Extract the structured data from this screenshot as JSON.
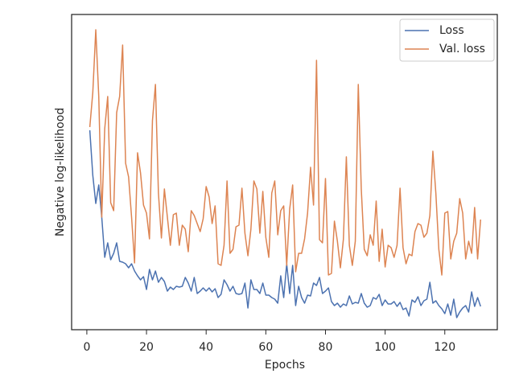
{
  "chart_data": {
    "type": "line",
    "xlabel": "Epochs",
    "ylabel": "Negative log-likelihood",
    "x": [
      1,
      2,
      3,
      4,
      5,
      6,
      7,
      8,
      9,
      10,
      11,
      12,
      13,
      14,
      15,
      16,
      17,
      18,
      19,
      20,
      21,
      22,
      23,
      24,
      25,
      26,
      27,
      28,
      29,
      30,
      31,
      32,
      33,
      34,
      35,
      36,
      37,
      38,
      39,
      40,
      41,
      42,
      43,
      44,
      45,
      46,
      47,
      48,
      49,
      50,
      51,
      52,
      53,
      54,
      55,
      56,
      57,
      58,
      59,
      60,
      61,
      62,
      63,
      64,
      65,
      66,
      67,
      68,
      69,
      70,
      71,
      72,
      73,
      74,
      75,
      76,
      77,
      78,
      79,
      80,
      81,
      82,
      83,
      84,
      85,
      86,
      87,
      88,
      89,
      90,
      91,
      92,
      93,
      94,
      95,
      96,
      97,
      98,
      99,
      100,
      101,
      102,
      103,
      104,
      105,
      106,
      107,
      108,
      109,
      110,
      111,
      112,
      113,
      114,
      115,
      116,
      117,
      118,
      119,
      120,
      121,
      122,
      123,
      124,
      125,
      126,
      127,
      128,
      129,
      130,
      131,
      132
    ],
    "series": [
      {
        "name": "Loss",
        "color": "#4c72b0",
        "values": [
          248,
          192,
          157,
          180,
          140,
          90,
          108,
          87,
          95,
          108,
          85,
          84,
          82,
          77,
          82,
          73,
          67,
          62,
          66,
          50,
          75,
          62,
          73,
          59,
          65,
          60,
          48,
          53,
          50,
          54,
          53,
          54,
          65,
          58,
          48,
          65,
          45,
          48,
          52,
          48,
          52,
          47,
          51,
          40,
          44,
          62,
          56,
          48,
          54,
          45,
          44,
          45,
          58,
          27,
          62,
          50,
          50,
          45,
          58,
          43,
          43,
          40,
          38,
          33,
          67,
          40,
          82,
          45,
          80,
          30,
          54,
          40,
          33,
          43,
          42,
          58,
          55,
          65,
          45,
          48,
          52,
          35,
          30,
          33,
          28,
          32,
          30,
          42,
          32,
          34,
          33,
          45,
          33,
          28,
          30,
          40,
          38,
          44,
          30,
          37,
          32,
          32,
          35,
          29,
          34,
          25,
          27,
          17,
          37,
          34,
          41,
          30,
          36,
          38,
          59,
          33,
          36,
          30,
          26,
          20,
          32,
          18,
          38,
          15,
          22,
          27,
          30,
          22,
          47,
          29,
          40,
          29
        ]
      },
      {
        "name": "Val. loss",
        "color": "#dd8452",
        "values": [
          252,
          295,
          373,
          290,
          140,
          250,
          290,
          158,
          148,
          270,
          290,
          354,
          207,
          190,
          140,
          83,
          220,
          195,
          155,
          145,
          113,
          260,
          305,
          170,
          114,
          175,
          140,
          105,
          143,
          145,
          105,
          130,
          125,
          97,
          148,
          142,
          132,
          122,
          138,
          178,
          165,
          132,
          154,
          82,
          80,
          105,
          185,
          95,
          100,
          128,
          130,
          176,
          120,
          92,
          125,
          185,
          175,
          120,
          172,
          115,
          90,
          170,
          185,
          118,
          148,
          154,
          80,
          150,
          180,
          72,
          95,
          95,
          113,
          145,
          202,
          155,
          335,
          112,
          108,
          188,
          68,
          70,
          135,
          110,
          77,
          112,
          215,
          105,
          80,
          110,
          305,
          175,
          100,
          92,
          118,
          105,
          160,
          85,
          125,
          78,
          105,
          102,
          90,
          105,
          176,
          102,
          82,
          94,
          92,
          122,
          132,
          130,
          115,
          120,
          142,
          222,
          170,
          100,
          68,
          145,
          147,
          88,
          110,
          120,
          163,
          145,
          88,
          110,
          95,
          152,
          88,
          137
        ]
      }
    ],
    "xlim": [
      -5.1,
      137.6
    ],
    "xticks": [
      0,
      20,
      40,
      60,
      80,
      100,
      120
    ],
    "ylim": [
      0,
      392
    ],
    "legend": "upper right",
    "grid": false
  }
}
